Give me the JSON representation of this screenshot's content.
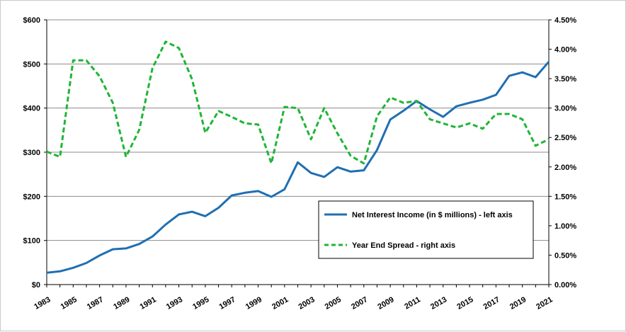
{
  "chart_data": {
    "type": "line",
    "title": "",
    "x": [
      1983,
      1984,
      1985,
      1986,
      1987,
      1988,
      1989,
      1990,
      1991,
      1992,
      1993,
      1994,
      1995,
      1996,
      1997,
      1998,
      1999,
      2000,
      2001,
      2002,
      2003,
      2004,
      2005,
      2006,
      2007,
      2008,
      2009,
      2010,
      2011,
      2012,
      2013,
      2014,
      2015,
      2016,
      2017,
      2018,
      2019,
      2020,
      2021
    ],
    "x_tick_labels": [
      "1983",
      "1985",
      "1987",
      "1989",
      "1991",
      "1993",
      "1995",
      "1997",
      "1999",
      "2001",
      "2003",
      "2005",
      "2007",
      "2009",
      "2011",
      "2013",
      "2015",
      "2017",
      "2019",
      "2021"
    ],
    "y_left_ticks": [
      "$0",
      "$100",
      "$200",
      "$300",
      "$400",
      "$500",
      "$600"
    ],
    "y_left_range": [
      0,
      600
    ],
    "y_right_ticks": [
      "0.00%",
      "0.50%",
      "1.00%",
      "1.50%",
      "2.00%",
      "2.50%",
      "3.00%",
      "3.50%",
      "4.00%",
      "4.50%"
    ],
    "y_right_range": [
      0,
      4.5
    ],
    "grid": "horizontal",
    "legend_position": "lower-right",
    "series": [
      {
        "name": "Net Interest Income (in $ millions) - left axis",
        "axis": "left",
        "style": "solid",
        "color": "#1f6fb2",
        "values": [
          27,
          30,
          38,
          49,
          66,
          80,
          82,
          92,
          109,
          136,
          159,
          165,
          155,
          174,
          202,
          208,
          212,
          199,
          216,
          277,
          253,
          244,
          266,
          256,
          259,
          305,
          374,
          394,
          416,
          397,
          380,
          404,
          412,
          419,
          430,
          473,
          481,
          470,
          505
        ]
      },
      {
        "name": "Year End Spread - right axis",
        "axis": "right",
        "style": "dashed",
        "color": "#1fb535",
        "values": [
          2.26,
          2.17,
          3.81,
          3.81,
          3.54,
          3.09,
          2.17,
          2.63,
          3.68,
          4.13,
          4.02,
          3.49,
          2.58,
          2.95,
          2.85,
          2.74,
          2.72,
          2.06,
          3.02,
          3.0,
          2.47,
          3.0,
          2.57,
          2.19,
          2.06,
          2.86,
          3.18,
          3.09,
          3.12,
          2.81,
          2.74,
          2.67,
          2.74,
          2.65,
          2.9,
          2.9,
          2.81,
          2.36,
          2.47
        ]
      }
    ]
  }
}
